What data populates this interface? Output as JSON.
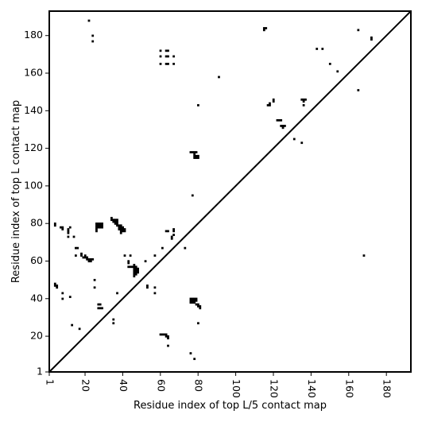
{
  "chart_data": {
    "type": "heatmap",
    "title": "",
    "xlabel": "Residue index of top L/5 contact map",
    "ylabel": "Residue index of top L contact map",
    "xlim": [
      1,
      193
    ],
    "ylim": [
      1,
      193
    ],
    "x_ticks": [
      "1",
      "20",
      "40",
      "60",
      "80",
      "100",
      "120",
      "140",
      "160",
      "180"
    ],
    "x_tick_values": [
      1,
      20,
      40,
      60,
      80,
      100,
      120,
      140,
      160,
      180
    ],
    "x_tick_rotation": -90,
    "y_ticks": [
      "1",
      "20",
      "40",
      "60",
      "80",
      "100",
      "120",
      "140",
      "160",
      "180"
    ],
    "y_tick_values": [
      1,
      20,
      40,
      60,
      80,
      100,
      120,
      140,
      160,
      180
    ],
    "diagonal": true,
    "grid": false,
    "colors": {
      "contact": "#000000",
      "background": "#ffffff",
      "diagonal": "#000000"
    },
    "points": [
      [
        22,
        188
      ],
      [
        24,
        180
      ],
      [
        24,
        177
      ],
      [
        60,
        172
      ],
      [
        63,
        172
      ],
      [
        64,
        172
      ],
      [
        60,
        169
      ],
      [
        63,
        169
      ],
      [
        64,
        169
      ],
      [
        67,
        169
      ],
      [
        60,
        165
      ],
      [
        63,
        165
      ],
      [
        64,
        165
      ],
      [
        67,
        165
      ],
      [
        115,
        184
      ],
      [
        116,
        184
      ],
      [
        115,
        183
      ],
      [
        165,
        183
      ],
      [
        143,
        173
      ],
      [
        146,
        173
      ],
      [
        172,
        178
      ],
      [
        172,
        179
      ],
      [
        150,
        165
      ],
      [
        154,
        161
      ],
      [
        91,
        158
      ],
      [
        165,
        151
      ],
      [
        135,
        146
      ],
      [
        136,
        146
      ],
      [
        137,
        146
      ],
      [
        136,
        145
      ],
      [
        136,
        143
      ],
      [
        118,
        144
      ],
      [
        117,
        143
      ],
      [
        118,
        143
      ],
      [
        120,
        146
      ],
      [
        120,
        145
      ],
      [
        80,
        143
      ],
      [
        122,
        135
      ],
      [
        123,
        135
      ],
      [
        124,
        135
      ],
      [
        124,
        132
      ],
      [
        125,
        132
      ],
      [
        126,
        132
      ],
      [
        125,
        131
      ],
      [
        131,
        125
      ],
      [
        135,
        123
      ],
      [
        76,
        118
      ],
      [
        77,
        118
      ],
      [
        78,
        118
      ],
      [
        79,
        118
      ],
      [
        78,
        117
      ],
      [
        78,
        116
      ],
      [
        79,
        116
      ],
      [
        80,
        116
      ],
      [
        78,
        115
      ],
      [
        79,
        115
      ],
      [
        80,
        115
      ],
      [
        77,
        95
      ],
      [
        4,
        80
      ],
      [
        4,
        79
      ],
      [
        7,
        78
      ],
      [
        8,
        78
      ],
      [
        8,
        77
      ],
      [
        12,
        78
      ],
      [
        11,
        77
      ],
      [
        11,
        76
      ],
      [
        11,
        75
      ],
      [
        26,
        80
      ],
      [
        27,
        80
      ],
      [
        28,
        80
      ],
      [
        29,
        80
      ],
      [
        26,
        79
      ],
      [
        27,
        79
      ],
      [
        28,
        79
      ],
      [
        29,
        79
      ],
      [
        26,
        78
      ],
      [
        27,
        78
      ],
      [
        28,
        78
      ],
      [
        29,
        78
      ],
      [
        26,
        77
      ],
      [
        26,
        76
      ],
      [
        34,
        83
      ],
      [
        34,
        82
      ],
      [
        35,
        82
      ],
      [
        36,
        82
      ],
      [
        37,
        82
      ],
      [
        35,
        81
      ],
      [
        36,
        81
      ],
      [
        37,
        81
      ],
      [
        36,
        80
      ],
      [
        37,
        80
      ],
      [
        37,
        79
      ],
      [
        38,
        79
      ],
      [
        39,
        79
      ],
      [
        38,
        78
      ],
      [
        39,
        78
      ],
      [
        40,
        78
      ],
      [
        38,
        77
      ],
      [
        39,
        77
      ],
      [
        40,
        77
      ],
      [
        41,
        77
      ],
      [
        39,
        76
      ],
      [
        40,
        76
      ],
      [
        41,
        76
      ],
      [
        39,
        75
      ],
      [
        11,
        73
      ],
      [
        14,
        73
      ],
      [
        15,
        67
      ],
      [
        16,
        67
      ],
      [
        15,
        63
      ],
      [
        18,
        64
      ],
      [
        18,
        63
      ],
      [
        20,
        63
      ],
      [
        19,
        62
      ],
      [
        20,
        62
      ],
      [
        21,
        62
      ],
      [
        21,
        61
      ],
      [
        22,
        61
      ],
      [
        23,
        61
      ],
      [
        24,
        61
      ],
      [
        22,
        60
      ],
      [
        23,
        60
      ],
      [
        41,
        63
      ],
      [
        44,
        63
      ],
      [
        43,
        60
      ],
      [
        43,
        59
      ],
      [
        43,
        57
      ],
      [
        44,
        57
      ],
      [
        45,
        57
      ],
      [
        46,
        57
      ],
      [
        47,
        57
      ],
      [
        46,
        58
      ],
      [
        46,
        56
      ],
      [
        47,
        56
      ],
      [
        48,
        56
      ],
      [
        46,
        55
      ],
      [
        47,
        55
      ],
      [
        48,
        55
      ],
      [
        46,
        54
      ],
      [
        47,
        54
      ],
      [
        48,
        54
      ],
      [
        46,
        53
      ],
      [
        47,
        53
      ],
      [
        46,
        52
      ],
      [
        52,
        60
      ],
      [
        57,
        63
      ],
      [
        61,
        67
      ],
      [
        73,
        67
      ],
      [
        63,
        76
      ],
      [
        64,
        76
      ],
      [
        67,
        77
      ],
      [
        67,
        76
      ],
      [
        67,
        74
      ],
      [
        66,
        73
      ],
      [
        66,
        72
      ],
      [
        4,
        48
      ],
      [
        4,
        47
      ],
      [
        5,
        47
      ],
      [
        5,
        46
      ],
      [
        25,
        50
      ],
      [
        25,
        46
      ],
      [
        8,
        43
      ],
      [
        8,
        40
      ],
      [
        12,
        41
      ],
      [
        37,
        43
      ],
      [
        53,
        47
      ],
      [
        53,
        46
      ],
      [
        57,
        46
      ],
      [
        57,
        43
      ],
      [
        27,
        37
      ],
      [
        28,
        37
      ],
      [
        27,
        35
      ],
      [
        28,
        35
      ],
      [
        29,
        35
      ],
      [
        76,
        40
      ],
      [
        77,
        40
      ],
      [
        78,
        40
      ],
      [
        79,
        40
      ],
      [
        76,
        39
      ],
      [
        77,
        39
      ],
      [
        78,
        39
      ],
      [
        79,
        39
      ],
      [
        76,
        38
      ],
      [
        77,
        38
      ],
      [
        78,
        38
      ],
      [
        79,
        37
      ],
      [
        80,
        37
      ],
      [
        80,
        36
      ],
      [
        81,
        36
      ],
      [
        81,
        35
      ],
      [
        80,
        27
      ],
      [
        35,
        29
      ],
      [
        35,
        27
      ],
      [
        13,
        26
      ],
      [
        17,
        24
      ],
      [
        60,
        21
      ],
      [
        61,
        21
      ],
      [
        62,
        21
      ],
      [
        63,
        21
      ],
      [
        63,
        20
      ],
      [
        64,
        20
      ],
      [
        64,
        19
      ],
      [
        64,
        15
      ],
      [
        76,
        11
      ],
      [
        78,
        8
      ],
      [
        168,
        63
      ]
    ]
  }
}
